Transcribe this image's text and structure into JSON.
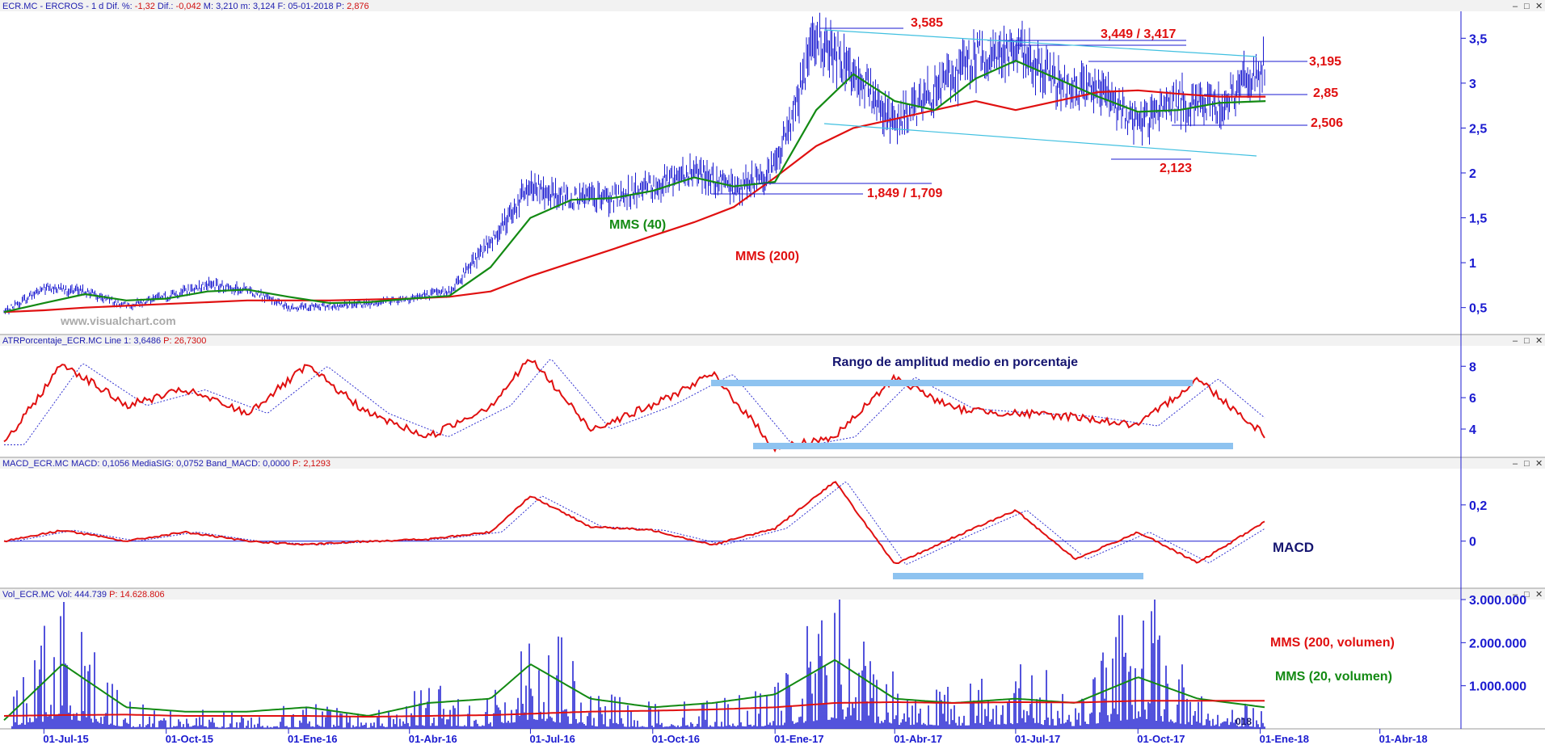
{
  "panels": {
    "price": {
      "title_parts": [
        {
          "text": "ECR.MC - ERCROS - 1 d  Dif. %: ",
          "color": "#2020b0"
        },
        {
          "text": "-1,32",
          "color": "#d01010"
        },
        {
          "text": "  Dif.: ",
          "color": "#2020b0"
        },
        {
          "text": "-0,042",
          "color": "#d01010"
        },
        {
          "text": "  M: 3,210  m: 3,124  F: 05-01-2018  P: ",
          "color": "#2020b0"
        },
        {
          "text": "2,876",
          "color": "#d01010"
        }
      ],
      "watermark": "www.visualchart.com"
    },
    "atr": {
      "title_parts": [
        {
          "text": "ATRPorcentaje_ECR.MC  Line 1: 3,6486  ",
          "color": "#2020b0"
        },
        {
          "text": "P: 26,7300",
          "color": "#d01010"
        }
      ]
    },
    "macd": {
      "title_parts": [
        {
          "text": "MACD_ECR.MC  MACD: 0,1056  MediaSIG: 0,0752  Band_MACD: 0,0000  ",
          "color": "#2020b0"
        },
        {
          "text": "P: 2,1293",
          "color": "#d01010"
        }
      ]
    },
    "vol": {
      "title_parts": [
        {
          "text": "Vol_ECR.MC  Vol: 444.739  ",
          "color": "#2020b0"
        },
        {
          "text": "P: 14.628.806",
          "color": "#d01010"
        }
      ],
      "clipped_label": "018"
    }
  },
  "annotations": {
    "price_levels": [
      "3,585",
      "3,449 / 3,417",
      "3,195",
      "2,85",
      "2,506",
      "2,123",
      "1,849 / 1,709"
    ],
    "mms40": "MMS (40)",
    "mms200": "MMS (200)",
    "atr_label": "Rango de amplitud medio en porcentaje",
    "macd_label": "MACD",
    "vol_mms200": "MMS (200, volumen)",
    "vol_mms20": "MMS (20, volumen)"
  },
  "colors": {
    "price": "#1a1ad0",
    "red": "#e01010",
    "green": "#138a13",
    "band": "#8ec3f0",
    "channel": "#40c0e0"
  },
  "chart_data": [
    {
      "type": "line",
      "title": "",
      "x": [
        "2015-06-01",
        "2015-07-01",
        "2015-08-01",
        "2015-09-01",
        "2015-10-01",
        "2015-11-01",
        "2015-12-01",
        "2016-01-01",
        "2016-02-01",
        "2016-03-01",
        "2016-04-01",
        "2016-05-01",
        "2016-06-01",
        "2016-07-01",
        "2016-08-01",
        "2016-09-01",
        "2016-10-01",
        "2016-11-01",
        "2016-12-01",
        "2017-01-01",
        "2017-02-01",
        "2017-03-01",
        "2017-04-01",
        "2017-05-01",
        "2017-06-01",
        "2017-07-01",
        "2017-08-01",
        "2017-09-01",
        "2017-10-01",
        "2017-11-01",
        "2017-12-01",
        "2018-01-05"
      ],
      "x_ticks": [
        "01-Jul-15",
        "01-Oct-15",
        "01-Ene-16",
        "01-Abr-16",
        "01-Jul-16",
        "01-Oct-16",
        "01-Ene-17",
        "01-Abr-17",
        "01-Jul-17",
        "01-Oct-17",
        "01-Ene-18",
        "01-Abr-18"
      ],
      "ylim": [
        0.2,
        3.8
      ],
      "y_ticks": [
        "3,5",
        "3",
        "2,5",
        "2",
        "1,5",
        "1",
        "0,5"
      ],
      "series": [
        {
          "name": "",
          "values": [
            0.45,
            0.72,
            0.68,
            0.52,
            0.62,
            0.75,
            0.7,
            0.5,
            0.52,
            0.55,
            0.6,
            0.68,
            1.25,
            1.85,
            1.72,
            1.72,
            1.85,
            2.05,
            1.8,
            2.05,
            3.5,
            3.15,
            2.55,
            2.9,
            3.3,
            3.35,
            3.0,
            2.9,
            2.55,
            2.8,
            2.75,
            3.19
          ]
        },
        {
          "name": "MMS (40)",
          "values": [
            0.45,
            0.55,
            0.65,
            0.58,
            0.6,
            0.68,
            0.7,
            0.62,
            0.55,
            0.56,
            0.6,
            0.63,
            0.95,
            1.5,
            1.7,
            1.72,
            1.8,
            1.95,
            1.85,
            1.9,
            2.7,
            3.1,
            2.8,
            2.7,
            3.05,
            3.25,
            3.05,
            2.85,
            2.68,
            2.7,
            2.78,
            2.8
          ]
        },
        {
          "name": "MMS (200)",
          "values": [
            0.45,
            0.47,
            0.5,
            0.52,
            0.54,
            0.56,
            0.58,
            0.58,
            0.58,
            0.59,
            0.6,
            0.62,
            0.68,
            0.85,
            1.0,
            1.15,
            1.3,
            1.45,
            1.62,
            1.95,
            2.3,
            2.5,
            2.6,
            2.7,
            2.8,
            2.7,
            2.8,
            2.9,
            2.92,
            2.88,
            2.85,
            2.85
          ]
        }
      ]
    },
    {
      "type": "line",
      "title": "",
      "x": [
        "2015-06-01",
        "2015-07-15",
        "2015-09-01",
        "2015-10-15",
        "2015-12-01",
        "2016-01-15",
        "2016-03-01",
        "2016-04-15",
        "2016-06-01",
        "2016-07-01",
        "2016-08-15",
        "2016-10-01",
        "2016-11-15",
        "2017-01-01",
        "2017-02-15",
        "2017-04-01",
        "2017-05-15",
        "2017-07-01",
        "2017-08-15",
        "2017-10-01",
        "2017-11-15",
        "2018-01-05"
      ],
      "ylim": [
        2.2,
        9.3
      ],
      "y_ticks": [
        "8",
        "6",
        "4"
      ],
      "series": [
        {
          "name": "",
          "values": [
            3.0,
            8.2,
            5.5,
            6.5,
            5.0,
            8.0,
            5.0,
            3.5,
            5.5,
            8.5,
            4.0,
            5.5,
            7.5,
            2.8,
            3.5,
            7.3,
            5.3,
            5.0,
            4.8,
            4.2,
            7.2,
            3.6
          ]
        }
      ]
    },
    {
      "type": "line",
      "title": "",
      "x": [
        "2015-06-01",
        "2015-07-15",
        "2015-09-01",
        "2015-10-15",
        "2015-12-01",
        "2016-01-15",
        "2016-03-01",
        "2016-04-15",
        "2016-06-01",
        "2016-07-01",
        "2016-08-15",
        "2016-10-01",
        "2016-11-15",
        "2017-01-01",
        "2017-02-15",
        "2017-04-01",
        "2017-05-15",
        "2017-07-01",
        "2017-08-15",
        "2017-10-01",
        "2017-11-15",
        "2018-01-05"
      ],
      "ylim": [
        -0.26,
        0.4
      ],
      "y_ticks": [
        "0,2",
        "0"
      ],
      "series": [
        {
          "name": "MACD",
          "values": [
            0.0,
            0.06,
            0.0,
            0.05,
            0.0,
            -0.02,
            0.0,
            0.01,
            0.05,
            0.25,
            0.08,
            0.06,
            -0.02,
            0.07,
            0.33,
            -0.13,
            0.02,
            0.17,
            -0.1,
            0.05,
            -0.12,
            0.11
          ]
        }
      ]
    },
    {
      "type": "bar",
      "title": "",
      "x": [
        "2015-06-01",
        "2015-07-15",
        "2015-09-01",
        "2015-10-15",
        "2015-12-01",
        "2016-01-15",
        "2016-03-01",
        "2016-04-15",
        "2016-06-01",
        "2016-07-01",
        "2016-08-15",
        "2016-10-01",
        "2016-11-15",
        "2017-01-01",
        "2017-02-15",
        "2017-04-01",
        "2017-05-15",
        "2017-07-01",
        "2017-08-15",
        "2017-10-01",
        "2017-11-15",
        "2018-01-05"
      ],
      "ylim": [
        0,
        3000000
      ],
      "y_ticks": [
        "3.000.000",
        "2.000.000",
        "1.000.000"
      ],
      "series": [
        {
          "name": "",
          "values": [
            200000,
            3000000,
            500000,
            400000,
            300000,
            500000,
            300000,
            900000,
            600000,
            2800000,
            700000,
            500000,
            600000,
            800000,
            2800000,
            1200000,
            900000,
            1400000,
            800000,
            3000000,
            900000,
            444739
          ]
        },
        {
          "name": "MMS (200, volumen)",
          "values": [
            300000,
            320000,
            330000,
            300000,
            300000,
            300000,
            280000,
            300000,
            320000,
            350000,
            400000,
            420000,
            450000,
            500000,
            600000,
            620000,
            600000,
            620000,
            610000,
            650000,
            650000,
            650000
          ]
        },
        {
          "name": "MMS (20, volumen)",
          "values": [
            200000,
            1500000,
            500000,
            400000,
            400000,
            500000,
            300000,
            600000,
            700000,
            1500000,
            700000,
            500000,
            600000,
            800000,
            1600000,
            700000,
            600000,
            700000,
            600000,
            1200000,
            700000,
            500000
          ]
        }
      ]
    }
  ]
}
